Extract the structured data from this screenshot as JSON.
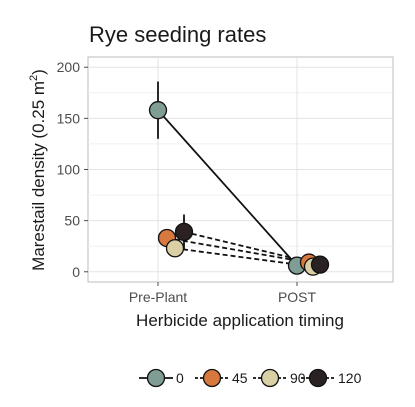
{
  "chart_data": {
    "type": "scatter",
    "title": "Rye seeding rates",
    "xlabel": "Herbicide application timing",
    "ylabel": "Marestail density (0.25 m",
    "ylabel_superscript": "2",
    "ylabel_close": ")",
    "categories": [
      "Pre-Plant",
      "POST"
    ],
    "ylim": [
      -10,
      210
    ],
    "yticks": [
      0,
      50,
      100,
      150,
      200
    ],
    "grid": true,
    "legend_position": "bottom",
    "series": [
      {
        "name": "0",
        "color": "#7f9c95",
        "line": "solid",
        "values": [
          158,
          6
        ],
        "errors": [
          28,
          0
        ]
      },
      {
        "name": "45",
        "color": "#d7783f",
        "line": "dashed",
        "values": [
          33,
          9
        ],
        "errors": [
          0,
          0
        ]
      },
      {
        "name": "90",
        "color": "#d9d0a6",
        "line": "dashed",
        "values": [
          23,
          5
        ],
        "errors": [
          0,
          0
        ]
      },
      {
        "name": "120",
        "color": "#2a2222",
        "line": "dashed",
        "values": [
          39,
          7
        ],
        "errors": [
          17,
          0
        ]
      }
    ]
  }
}
